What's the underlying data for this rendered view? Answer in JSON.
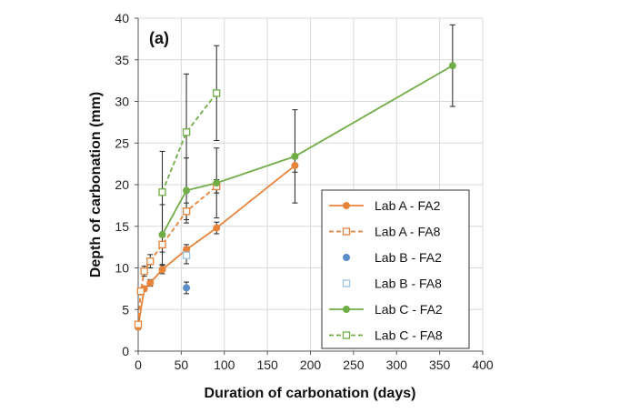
{
  "chart_data": {
    "type": "line",
    "panel_label": "(a)",
    "xlabel": "Duration of carbonation (days)",
    "ylabel": "Depth of carbonation (mm)",
    "xlim": [
      0,
      400
    ],
    "ylim": [
      0,
      40
    ],
    "xticks": [
      0,
      50,
      100,
      150,
      200,
      250,
      300,
      350,
      400
    ],
    "yticks": [
      0,
      5,
      10,
      15,
      20,
      25,
      30,
      35,
      40
    ],
    "grid": true,
    "legend_position": "lower-right",
    "colors": {
      "orange": "#E8833A",
      "blue": "#5B8FC9",
      "light_blue": "#9DC3E6",
      "green": "#70AD47",
      "error_bar": "#222222",
      "grid": "#d9d9d9"
    },
    "series": [
      {
        "name": "Lab A - FA2",
        "color": "#E8833A",
        "line": "solid",
        "marker": "filled-circle",
        "x": [
          0,
          7,
          14,
          28,
          56,
          91,
          182
        ],
        "y": [
          2.9,
          7.5,
          8.2,
          9.8,
          12.2,
          14.8,
          22.3
        ],
        "err": [
          0.3,
          0.3,
          0.4,
          0.5,
          0.6,
          0.7,
          0.8
        ]
      },
      {
        "name": "Lab A - FA8",
        "color": "#E8833A",
        "line": "dashed",
        "marker": "open-square",
        "x": [
          0,
          3,
          7,
          14,
          28,
          56,
          91
        ],
        "y": [
          3.2,
          7.2,
          9.6,
          10.8,
          12.8,
          16.8,
          19.8
        ],
        "err": [
          0.3,
          0.4,
          0.6,
          0.8,
          0.9,
          1.0,
          0.8
        ]
      },
      {
        "name": "Lab B - FA2",
        "color": "#5B8FC9",
        "line": "none",
        "marker": "filled-circle",
        "x": [
          56
        ],
        "y": [
          7.6
        ],
        "err": [
          0.7
        ]
      },
      {
        "name": "Lab B - FA8",
        "color": "#9DC3E6",
        "line": "none",
        "marker": "open-square",
        "x": [
          56
        ],
        "y": [
          11.5
        ],
        "err": [
          1.0
        ]
      },
      {
        "name": "Lab C - FA2",
        "color": "#70AD47",
        "line": "solid",
        "marker": "filled-circle",
        "x": [
          28,
          56,
          91,
          182,
          365
        ],
        "y": [
          14.0,
          19.3,
          20.2,
          23.4,
          34.3
        ],
        "err": [
          3.6,
          3.9,
          4.2,
          5.6,
          4.9
        ]
      },
      {
        "name": "Lab C - FA8",
        "color": "#70AD47",
        "line": "dashed",
        "marker": "open-square",
        "x": [
          28,
          56,
          91
        ],
        "y": [
          19.1,
          26.3,
          31.0
        ],
        "err": [
          4.9,
          7.0,
          5.7
        ]
      }
    ]
  }
}
